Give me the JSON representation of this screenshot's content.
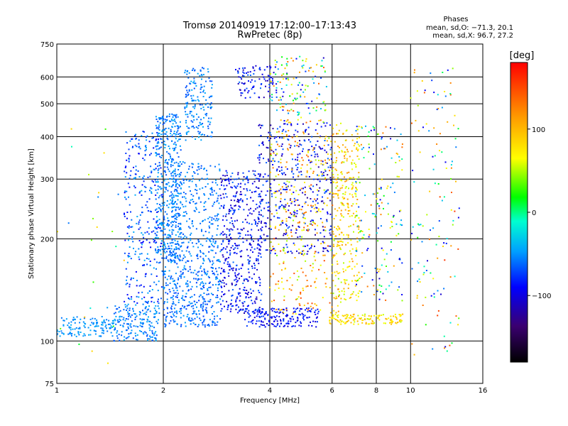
{
  "chart_data": {
    "type": "scatter",
    "title": "Tromsø 20140919 17:12:00–17:13:43",
    "subtitle": "RwPretec (8p)",
    "xlabel": "Frequency [MHz]",
    "ylabel": "Stationary phase Virtual Height [km]",
    "x_scale": "log",
    "y_scale": "log",
    "xlim": [
      1,
      16
    ],
    "ylim": [
      75,
      750
    ],
    "x_ticks": [
      1,
      2,
      4,
      6,
      8,
      10,
      16
    ],
    "x_tick_labels": [
      "1",
      "2",
      "4",
      "6",
      "8",
      "10",
      "16"
    ],
    "y_ticks": [
      75,
      100,
      200,
      300,
      400,
      500,
      600,
      750
    ],
    "y_tick_labels": [
      "75",
      "100",
      "200",
      "300",
      "400",
      "500",
      "600",
      "750"
    ],
    "grid": true,
    "stats": {
      "heading": "Phases",
      "line_o": "mean, sd,O: −71.3, 20.1",
      "line_x": "mean, sd,X:  96.7, 27.2"
    },
    "colorbar": {
      "label": "[deg]",
      "range": [
        -180,
        180
      ],
      "ticks": [
        -100,
        0,
        100
      ],
      "tick_labels": [
        "−100",
        "0",
        "100"
      ]
    },
    "series": [
      {
        "clusters": [
          {
            "x": [
              1.0,
              1.45
            ],
            "y": [
              103,
              118
            ],
            "n": 130,
            "phase": [
              -60,
              -40
            ]
          },
          {
            "x": [
              1.45,
              1.95
            ],
            "y": [
              100,
              128
            ],
            "n": 180,
            "phase": [
              -70,
              -40
            ]
          },
          {
            "x": [
              1.55,
              2.0
            ],
            "y": [
              128,
              420
            ],
            "n": 320,
            "phase": [
              -95,
              -40
            ]
          },
          {
            "x": [
              1.9,
              2.25
            ],
            "y": [
              170,
              470
            ],
            "n": 420,
            "phase": [
              -70,
              -40
            ]
          },
          {
            "x": [
              2.0,
              2.9
            ],
            "y": [
              110,
              190
            ],
            "n": 420,
            "phase": [
              -75,
              -45
            ]
          },
          {
            "x": [
              2.1,
              2.9
            ],
            "y": [
              190,
              340
            ],
            "n": 260,
            "phase": [
              -70,
              -45
            ]
          },
          {
            "x": [
              2.3,
              2.75
            ],
            "y": [
              390,
              640
            ],
            "n": 170,
            "phase": [
              -70,
              -40
            ]
          },
          {
            "x": [
              2.9,
              3.8
            ],
            "y": [
              120,
              320
            ],
            "n": 460,
            "phase": [
              -120,
              -60
            ]
          },
          {
            "x": [
              3.2,
              4.2
            ],
            "y": [
              520,
              650
            ],
            "n": 90,
            "phase": [
              -120,
              -60
            ]
          },
          {
            "x": [
              3.4,
              5.5
            ],
            "y": [
              110,
              125
            ],
            "n": 180,
            "phase": [
              -110,
              -70
            ]
          },
          {
            "x": [
              3.7,
              6.0
            ],
            "y": [
              180,
              440
            ],
            "n": 430,
            "phase": [
              -125,
              -60
            ]
          },
          {
            "x": [
              4.0,
              6.5
            ],
            "y": [
              120,
              420
            ],
            "n": 360,
            "phase": [
              40,
              150
            ]
          },
          {
            "x": [
              4.0,
              5.8
            ],
            "y": [
              440,
              690
            ],
            "n": 140,
            "phase": [
              -110,
              140
            ]
          },
          {
            "x": [
              5.9,
              9.5
            ],
            "y": [
              112,
              120
            ],
            "n": 130,
            "phase": [
              50,
              110
            ]
          },
          {
            "x": [
              6.0,
              7.2
            ],
            "y": [
              130,
              440
            ],
            "n": 260,
            "phase": [
              50,
              120
            ]
          },
          {
            "x": [
              7.0,
              9.5
            ],
            "y": [
              130,
              430
            ],
            "n": 170,
            "phase": [
              -110,
              140
            ]
          },
          {
            "x": [
              10.0,
              13.8
            ],
            "y": [
              90,
              640
            ],
            "n": 130,
            "phase": [
              -110,
              160
            ]
          },
          {
            "x": [
              1.0,
              1.6
            ],
            "y": [
              85,
              430
            ],
            "n": 25,
            "phase": [
              -60,
              100
            ]
          }
        ]
      }
    ]
  }
}
